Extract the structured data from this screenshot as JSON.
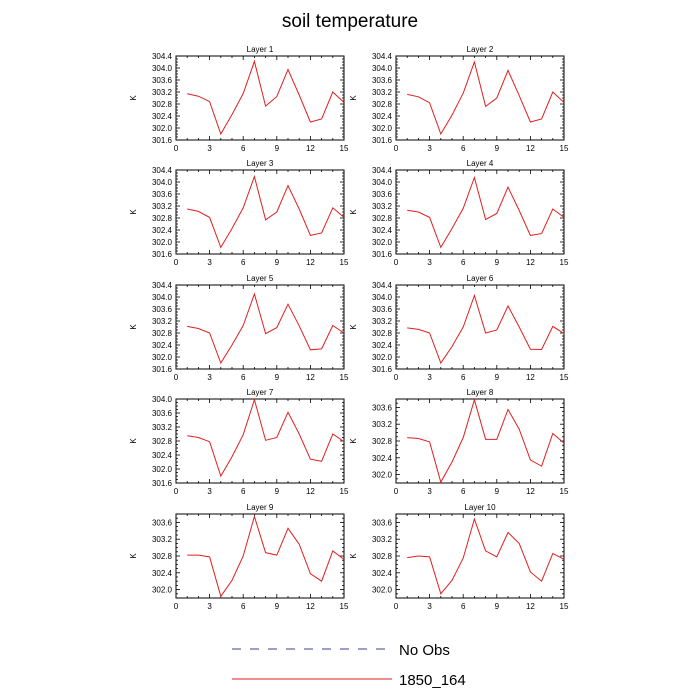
{
  "figure": {
    "title": "soil temperature"
  },
  "chart_data": [
    {
      "type": "line",
      "title": "Layer 1",
      "ylabel": "K",
      "xlim": [
        0,
        15
      ],
      "ylim": [
        301.6,
        304.4
      ],
      "xticks": [
        0,
        3,
        6,
        9,
        12,
        15
      ],
      "yticks": [
        301.6,
        302.0,
        302.4,
        302.8,
        303.2,
        303.6,
        304.0,
        304.4
      ],
      "series": [
        {
          "name": "1850_164",
          "x": [
            1,
            2,
            3,
            4,
            5,
            6,
            7,
            8,
            9,
            10,
            11,
            12,
            13,
            14,
            15
          ],
          "y": [
            303.14,
            303.06,
            302.88,
            301.8,
            302.45,
            303.15,
            304.22,
            302.73,
            303.05,
            303.95,
            303.1,
            302.2,
            302.3,
            303.2,
            302.85
          ]
        }
      ]
    },
    {
      "type": "line",
      "title": "Layer 2",
      "ylabel": "K",
      "xlim": [
        0,
        15
      ],
      "ylim": [
        301.6,
        304.4
      ],
      "xticks": [
        0,
        3,
        6,
        9,
        12,
        15
      ],
      "yticks": [
        301.6,
        302.0,
        302.4,
        302.8,
        303.2,
        303.6,
        304.0,
        304.4
      ],
      "series": [
        {
          "name": "1850_164",
          "x": [
            1,
            2,
            3,
            4,
            5,
            6,
            7,
            8,
            9,
            10,
            11,
            12,
            13,
            14,
            15
          ],
          "y": [
            303.12,
            303.04,
            302.84,
            301.8,
            302.43,
            303.16,
            304.2,
            302.72,
            303.0,
            303.92,
            303.08,
            302.2,
            302.3,
            303.2,
            302.85
          ]
        }
      ]
    },
    {
      "type": "line",
      "title": "Layer 3",
      "ylabel": "K",
      "xlim": [
        0,
        15
      ],
      "ylim": [
        301.6,
        304.4
      ],
      "xticks": [
        0,
        3,
        6,
        9,
        12,
        15
      ],
      "yticks": [
        301.6,
        302.0,
        302.4,
        302.8,
        303.2,
        303.6,
        304.0,
        304.4
      ],
      "series": [
        {
          "name": "1850_164",
          "x": [
            1,
            2,
            3,
            4,
            5,
            6,
            7,
            8,
            9,
            10,
            11,
            12,
            13,
            14,
            15
          ],
          "y": [
            303.1,
            303.02,
            302.82,
            301.82,
            302.45,
            303.14,
            304.18,
            302.74,
            303.0,
            303.88,
            303.1,
            302.22,
            302.3,
            303.14,
            302.82
          ]
        }
      ]
    },
    {
      "type": "line",
      "title": "Layer 4",
      "ylabel": "K",
      "xlim": [
        0,
        15
      ],
      "ylim": [
        301.6,
        304.4
      ],
      "xticks": [
        0,
        3,
        6,
        9,
        12,
        15
      ],
      "yticks": [
        301.6,
        302.0,
        302.4,
        302.8,
        303.2,
        303.6,
        304.0,
        304.4
      ],
      "series": [
        {
          "name": "1850_164",
          "x": [
            1,
            2,
            3,
            4,
            5,
            6,
            7,
            8,
            9,
            10,
            11,
            12,
            13,
            14,
            15
          ],
          "y": [
            303.06,
            303.0,
            302.82,
            301.82,
            302.45,
            303.12,
            304.15,
            302.75,
            302.95,
            303.83,
            303.05,
            302.22,
            302.28,
            303.1,
            302.82
          ]
        }
      ]
    },
    {
      "type": "line",
      "title": "Layer 5",
      "ylabel": "K",
      "xlim": [
        0,
        15
      ],
      "ylim": [
        301.6,
        304.4
      ],
      "xticks": [
        0,
        3,
        6,
        9,
        12,
        15
      ],
      "yticks": [
        301.6,
        302.0,
        302.4,
        302.8,
        303.2,
        303.6,
        304.0,
        304.4
      ],
      "series": [
        {
          "name": "1850_164",
          "x": [
            1,
            2,
            3,
            4,
            5,
            6,
            7,
            8,
            9,
            10,
            11,
            12,
            13,
            14,
            15
          ],
          "y": [
            303.02,
            302.95,
            302.8,
            301.8,
            302.4,
            303.05,
            304.1,
            302.78,
            302.98,
            303.76,
            303.04,
            302.24,
            302.27,
            303.05,
            302.8
          ]
        }
      ]
    },
    {
      "type": "line",
      "title": "Layer 6",
      "ylabel": "K",
      "xlim": [
        0,
        15
      ],
      "ylim": [
        301.6,
        304.4
      ],
      "xticks": [
        0,
        3,
        6,
        9,
        12,
        15
      ],
      "yticks": [
        301.6,
        302.0,
        302.4,
        302.8,
        303.2,
        303.6,
        304.0,
        304.4
      ],
      "series": [
        {
          "name": "1850_164",
          "x": [
            1,
            2,
            3,
            4,
            5,
            6,
            7,
            8,
            9,
            10,
            11,
            12,
            13,
            14,
            15
          ],
          "y": [
            302.97,
            302.92,
            302.8,
            301.8,
            302.35,
            303.0,
            304.05,
            302.8,
            302.9,
            303.7,
            303.0,
            302.26,
            302.25,
            303.02,
            302.78
          ]
        }
      ]
    },
    {
      "type": "line",
      "title": "Layer 7",
      "ylabel": "K",
      "xlim": [
        0,
        15
      ],
      "ylim": [
        301.6,
        304.0
      ],
      "xticks": [
        0,
        3,
        6,
        9,
        12,
        15
      ],
      "yticks": [
        301.6,
        302.0,
        302.4,
        302.8,
        303.2,
        303.6,
        304.0
      ],
      "series": [
        {
          "name": "1850_164",
          "x": [
            1,
            2,
            3,
            4,
            5,
            6,
            7,
            8,
            9,
            10,
            11,
            12,
            13,
            14,
            15
          ],
          "y": [
            302.95,
            302.9,
            302.78,
            301.8,
            302.35,
            302.98,
            303.98,
            302.82,
            302.9,
            303.62,
            303.0,
            302.28,
            302.22,
            303.0,
            302.78
          ]
        }
      ]
    },
    {
      "type": "line",
      "title": "Layer 8",
      "ylabel": "K",
      "xlim": [
        0,
        15
      ],
      "ylim": [
        301.8,
        303.8
      ],
      "xticks": [
        0,
        3,
        6,
        9,
        12,
        15
      ],
      "yticks": [
        302.0,
        302.4,
        302.8,
        303.2,
        303.6
      ],
      "series": [
        {
          "name": "1850_164",
          "x": [
            1,
            2,
            3,
            4,
            5,
            6,
            7,
            8,
            9,
            10,
            11,
            12,
            13,
            14,
            15
          ],
          "y": [
            302.88,
            302.86,
            302.78,
            301.82,
            302.3,
            302.88,
            303.78,
            302.84,
            302.84,
            303.55,
            303.08,
            302.35,
            302.2,
            302.98,
            302.75
          ]
        }
      ]
    },
    {
      "type": "line",
      "title": "Layer 9",
      "ylabel": "K",
      "xlim": [
        0,
        15
      ],
      "ylim": [
        301.8,
        303.8
      ],
      "xticks": [
        0,
        3,
        6,
        9,
        12,
        15
      ],
      "yticks": [
        302.0,
        302.4,
        302.8,
        303.2,
        303.6
      ],
      "series": [
        {
          "name": "1850_164",
          "x": [
            1,
            2,
            3,
            4,
            5,
            6,
            7,
            8,
            9,
            10,
            11,
            12,
            13,
            14,
            15
          ],
          "y": [
            302.82,
            302.82,
            302.78,
            301.84,
            302.22,
            302.8,
            303.74,
            302.88,
            302.82,
            303.46,
            303.08,
            302.38,
            302.2,
            302.92,
            302.72
          ]
        }
      ]
    },
    {
      "type": "line",
      "title": "Layer 10",
      "ylabel": "K",
      "xlim": [
        0,
        15
      ],
      "ylim": [
        301.8,
        303.8
      ],
      "xticks": [
        0,
        3,
        6,
        9,
        12,
        15
      ],
      "yticks": [
        302.0,
        302.4,
        302.8,
        303.2,
        303.6
      ],
      "series": [
        {
          "name": "1850_164",
          "x": [
            1,
            2,
            3,
            4,
            5,
            6,
            7,
            8,
            9,
            10,
            11,
            12,
            13,
            14,
            15
          ],
          "y": [
            302.76,
            302.8,
            302.78,
            301.9,
            302.22,
            302.75,
            303.68,
            302.92,
            302.78,
            303.36,
            303.1,
            302.42,
            302.2,
            302.86,
            302.72
          ]
        }
      ]
    }
  ],
  "legend": {
    "items": [
      {
        "label": "No Obs",
        "color": "#3b3f8f",
        "style": "dashed"
      },
      {
        "label": "1850_164",
        "color": "#e0201e",
        "style": "solid"
      }
    ]
  },
  "colors": {
    "series": "#e0201e",
    "axis": "#000000"
  }
}
